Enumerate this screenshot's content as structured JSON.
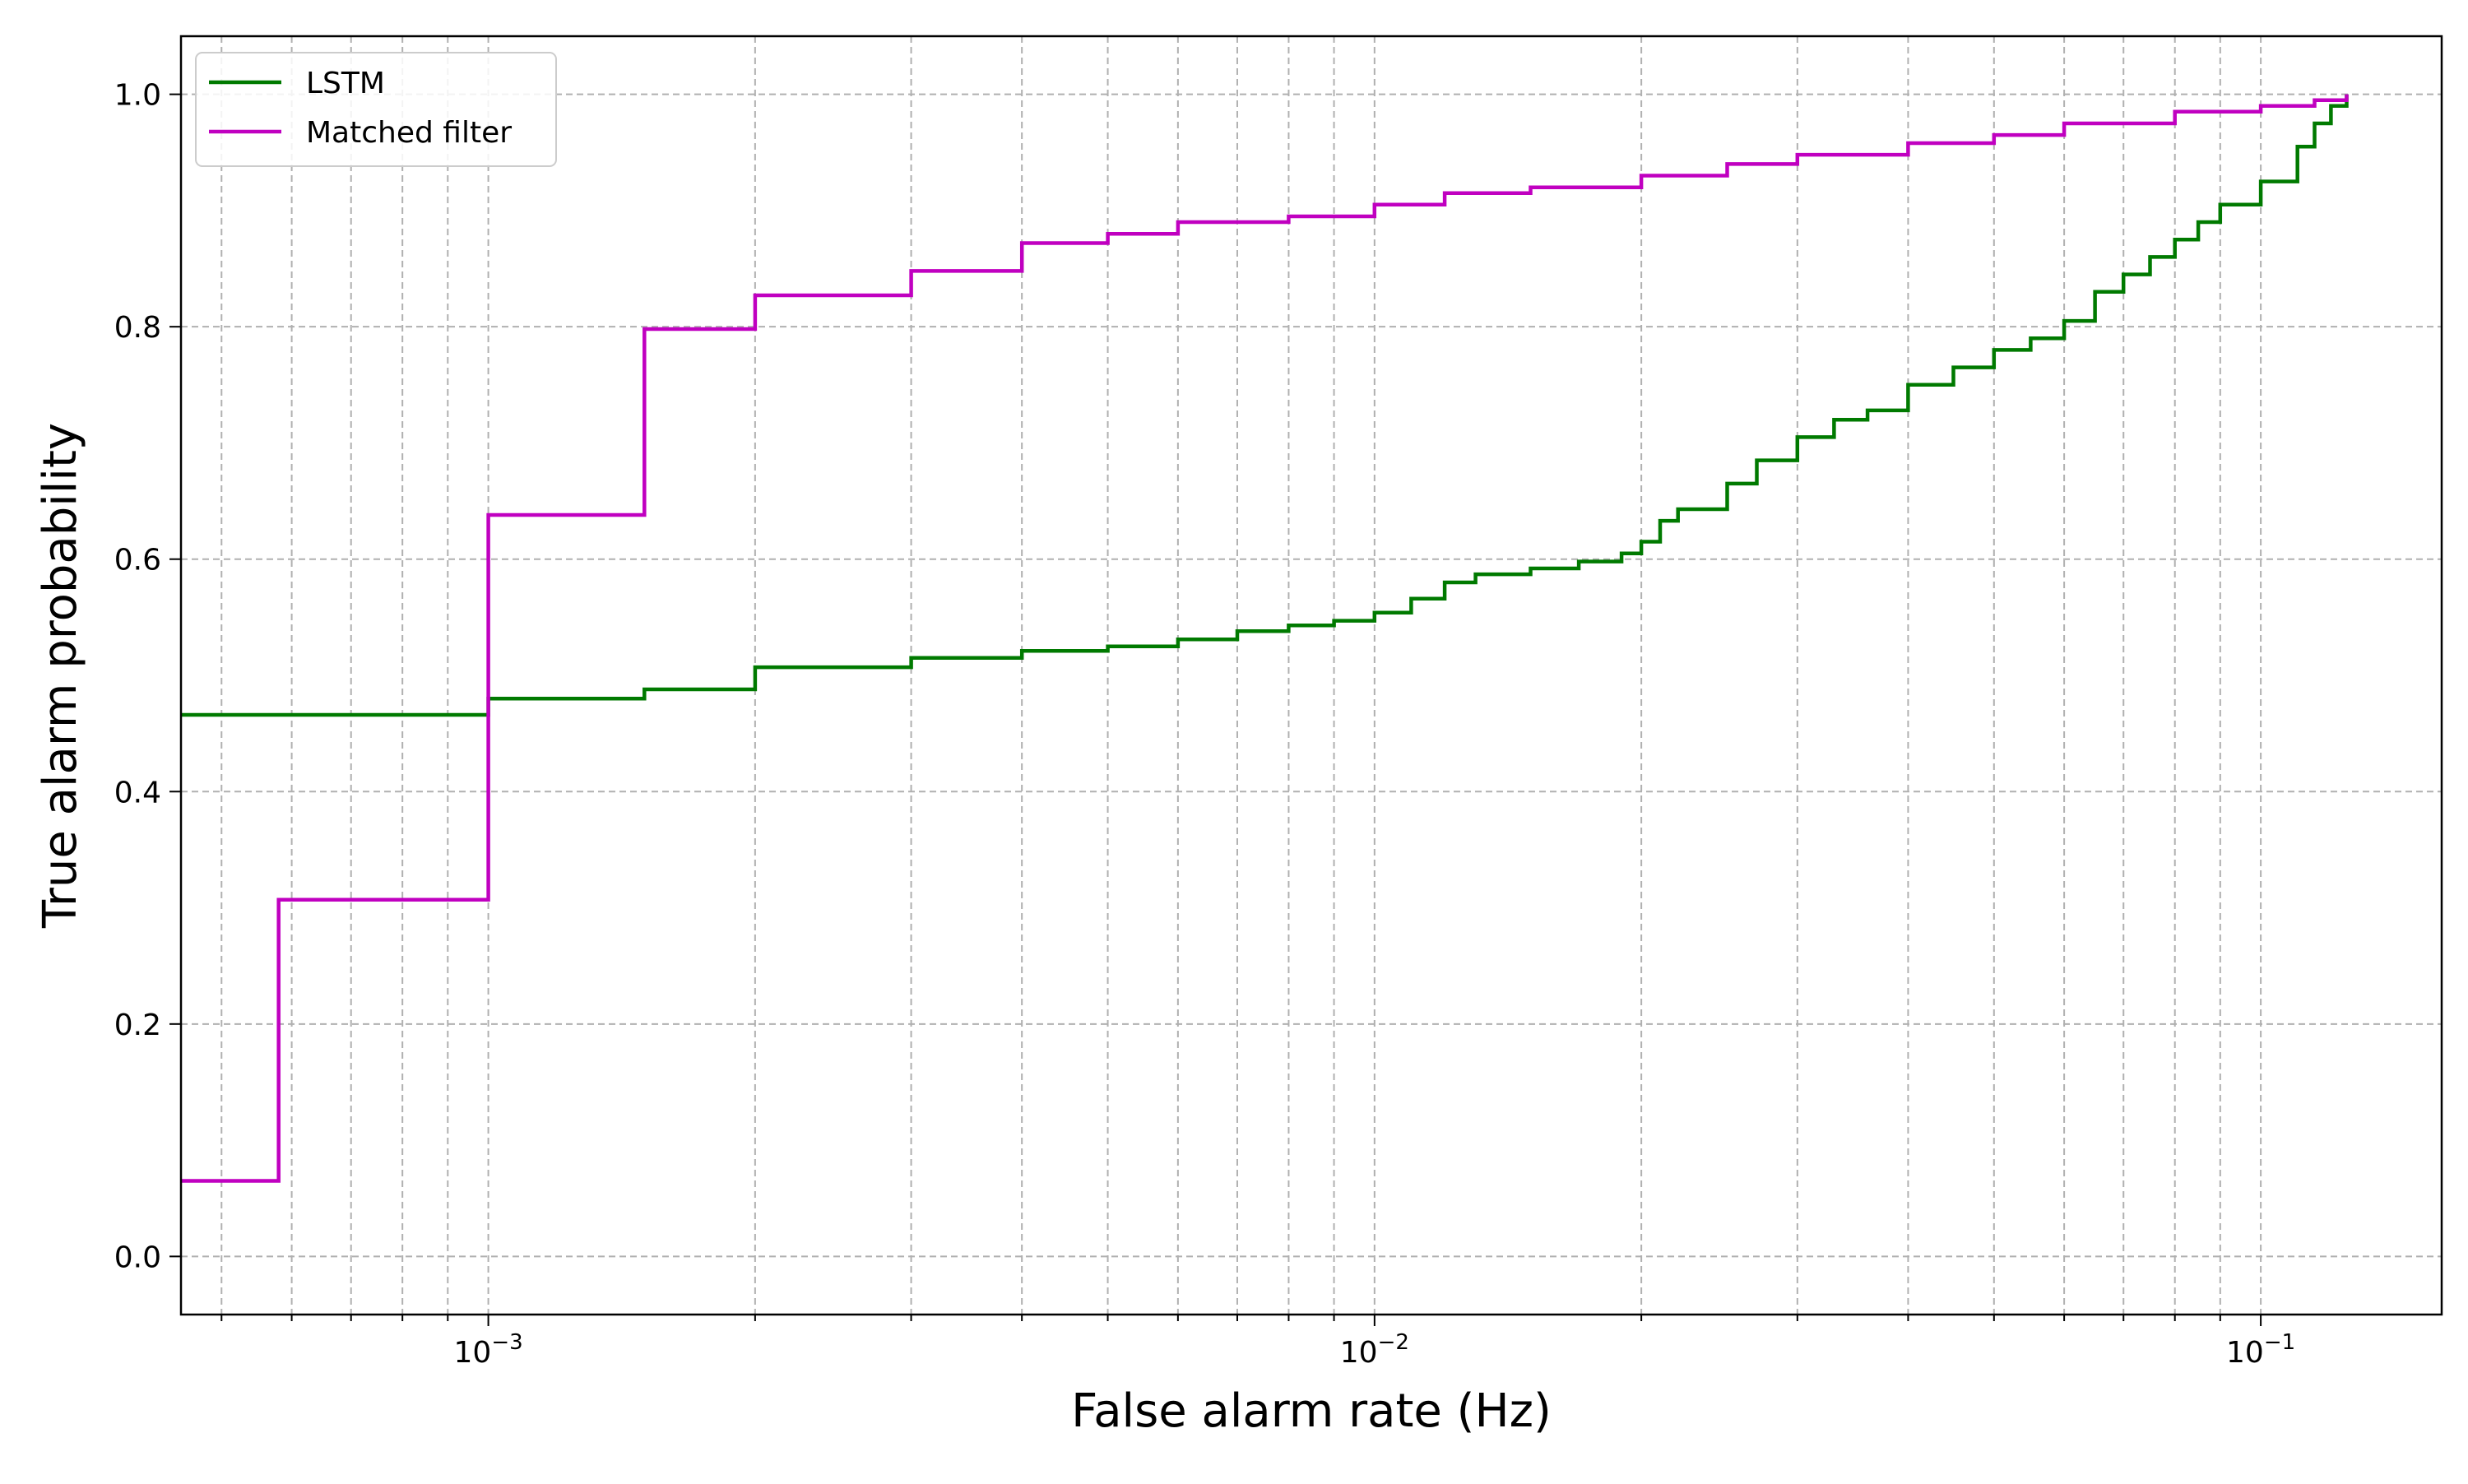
{
  "chart_data": {
    "type": "line",
    "title": "",
    "xlabel": "False alarm rate (Hz)",
    "ylabel": "True alarm probability",
    "xscale": "log",
    "xlim": [
      0.00045,
      0.16
    ],
    "ylim": [
      -0.05,
      1.05
    ],
    "yticks": [
      0.0,
      0.2,
      0.4,
      0.6,
      0.8,
      1.0
    ],
    "ytick_labels": [
      "0.0",
      "0.2",
      "0.4",
      "0.6",
      "0.8",
      "1.0"
    ],
    "xticks_major": [
      0.001,
      0.01,
      0.1
    ],
    "xtick_labels": [
      {
        "base": "10",
        "exp": "−3"
      },
      {
        "base": "10",
        "exp": "−2"
      },
      {
        "base": "10",
        "exp": "−1"
      }
    ],
    "xticks_minor": [
      0.0005,
      0.0006,
      0.0007,
      0.0008,
      0.0009,
      0.002,
      0.003,
      0.004,
      0.005,
      0.006,
      0.007,
      0.008,
      0.009,
      0.02,
      0.03,
      0.04,
      0.05,
      0.06,
      0.07,
      0.08,
      0.09
    ],
    "grid": true,
    "legend_position": "upper left",
    "series": [
      {
        "name": "LSTM",
        "color": "#007a00",
        "step": true,
        "x": [
          0.00045,
          0.001,
          0.0015,
          0.002,
          0.003,
          0.004,
          0.005,
          0.006,
          0.007,
          0.008,
          0.009,
          0.01,
          0.011,
          0.012,
          0.013,
          0.015,
          0.017,
          0.019,
          0.02,
          0.021,
          0.022,
          0.025,
          0.027,
          0.03,
          0.033,
          0.036,
          0.04,
          0.045,
          0.05,
          0.055,
          0.06,
          0.065,
          0.07,
          0.075,
          0.08,
          0.085,
          0.09,
          0.1,
          0.11,
          0.115,
          0.12,
          0.125
        ],
        "y": [
          0.466,
          0.48,
          0.488,
          0.507,
          0.515,
          0.521,
          0.525,
          0.531,
          0.538,
          0.543,
          0.547,
          0.554,
          0.566,
          0.58,
          0.587,
          0.592,
          0.598,
          0.605,
          0.615,
          0.633,
          0.643,
          0.665,
          0.685,
          0.705,
          0.72,
          0.728,
          0.75,
          0.765,
          0.78,
          0.79,
          0.805,
          0.83,
          0.845,
          0.86,
          0.875,
          0.89,
          0.905,
          0.925,
          0.955,
          0.975,
          0.99,
          1.0
        ]
      },
      {
        "name": "Matched filter",
        "color": "#c000c0",
        "step": true,
        "x": [
          0.00045,
          0.00058,
          0.001,
          0.0015,
          0.002,
          0.003,
          0.004,
          0.005,
          0.006,
          0.008,
          0.01,
          0.012,
          0.015,
          0.02,
          0.025,
          0.03,
          0.04,
          0.05,
          0.06,
          0.08,
          0.1,
          0.115,
          0.125
        ],
        "y": [
          0.065,
          0.307,
          0.638,
          0.798,
          0.827,
          0.848,
          0.872,
          0.88,
          0.89,
          0.895,
          0.905,
          0.915,
          0.92,
          0.93,
          0.94,
          0.948,
          0.958,
          0.965,
          0.975,
          0.985,
          0.99,
          0.995,
          1.0
        ]
      }
    ]
  }
}
